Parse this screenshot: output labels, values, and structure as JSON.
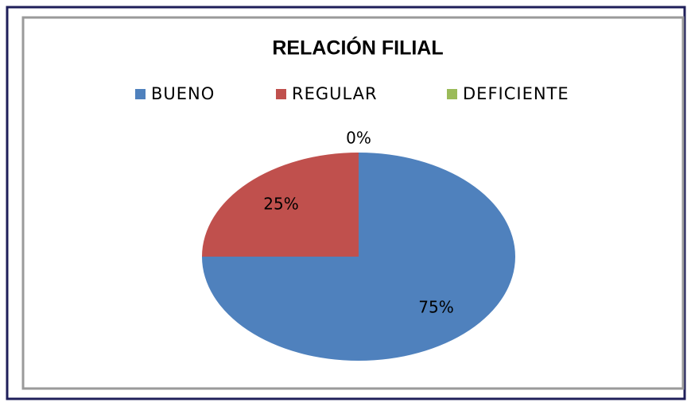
{
  "chart_data": {
    "type": "pie",
    "title": "RELACIÓN FILIAL",
    "categories": [
      "BUENO",
      "REGULAR",
      "DEFICIENTE"
    ],
    "values": [
      75,
      25,
      0
    ],
    "value_labels": [
      "75%",
      "25%",
      "0%"
    ],
    "colors": [
      "#4f81bd",
      "#c0504d",
      "#9bbb59"
    ],
    "legend": "top"
  }
}
